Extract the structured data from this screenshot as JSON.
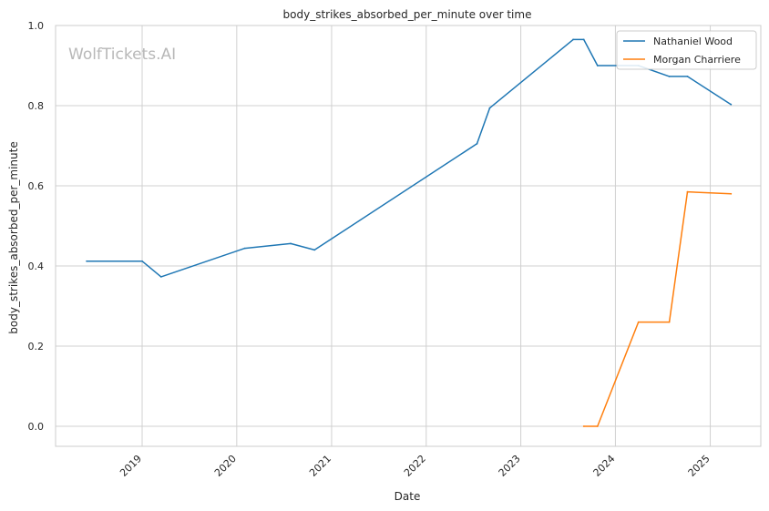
{
  "chart_data": {
    "type": "line",
    "title": "body_strikes_absorbed_per_minute over time",
    "xlabel": "Date",
    "ylabel": "body_strikes_absorbed_per_minute",
    "watermark": "WolfTickets.AI",
    "x_ticks": [
      "2019",
      "2020",
      "2021",
      "2022",
      "2023",
      "2024",
      "2025"
    ],
    "y_ticks": [
      "0.0",
      "0.2",
      "0.4",
      "0.6",
      "0.8",
      "1.0"
    ],
    "xlim": [
      "2018-02-01",
      "2025-07-15"
    ],
    "ylim": [
      -0.05,
      1.0
    ],
    "grid": true,
    "legend_position": "top-right",
    "series": [
      {
        "name": "Nathaniel Wood",
        "color": "#1f77b4",
        "points": [
          {
            "x": "2018-06-01",
            "y": 0.412
          },
          {
            "x": "2019-01-01",
            "y": 0.412
          },
          {
            "x": "2019-03-15",
            "y": 0.373
          },
          {
            "x": "2020-02-01",
            "y": 0.444
          },
          {
            "x": "2020-07-27",
            "y": 0.456
          },
          {
            "x": "2020-10-27",
            "y": 0.44
          },
          {
            "x": "2022-07-16",
            "y": 0.705
          },
          {
            "x": "2022-09-03",
            "y": 0.794
          },
          {
            "x": "2023-07-22",
            "y": 0.965
          },
          {
            "x": "2023-09-01",
            "y": 0.965
          },
          {
            "x": "2023-10-24",
            "y": 0.9
          },
          {
            "x": "2024-03-30",
            "y": 0.9
          },
          {
            "x": "2024-07-27",
            "y": 0.873
          },
          {
            "x": "2024-10-05",
            "y": 0.873
          },
          {
            "x": "2025-03-22",
            "y": 0.803
          }
        ]
      },
      {
        "name": "Morgan Charriere",
        "color": "#ff7f0e",
        "points": [
          {
            "x": "2023-09-01",
            "y": 0.0
          },
          {
            "x": "2023-10-24",
            "y": 0.0
          },
          {
            "x": "2024-03-30",
            "y": 0.26
          },
          {
            "x": "2024-07-27",
            "y": 0.26
          },
          {
            "x": "2024-10-05",
            "y": 0.585
          },
          {
            "x": "2025-03-22",
            "y": 0.58
          }
        ]
      }
    ]
  }
}
